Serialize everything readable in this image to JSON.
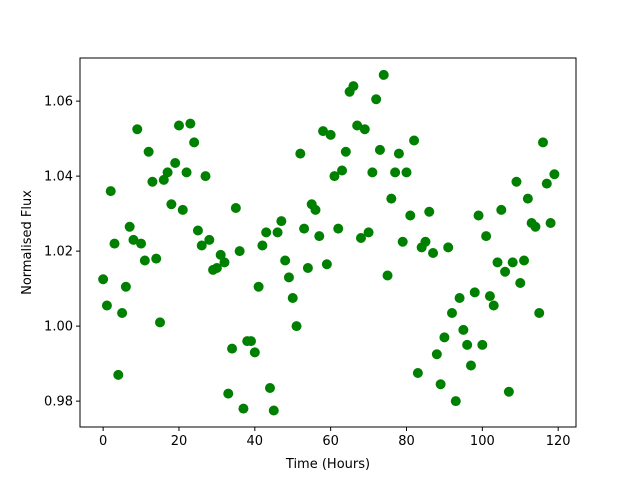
{
  "chart_data": {
    "type": "scatter",
    "title": "",
    "xlabel": "Time (Hours)",
    "ylabel": "Normalised Flux",
    "xlim": [
      -6.1,
      124.7
    ],
    "ylim": [
      0.9731,
      1.0715
    ],
    "xticks": [
      0,
      20,
      40,
      60,
      80,
      100,
      120
    ],
    "xtick_labels": [
      "0",
      "20",
      "40",
      "60",
      "80",
      "100",
      "120"
    ],
    "yticks": [
      0.98,
      1.0,
      1.02,
      1.04,
      1.06
    ],
    "ytick_labels": [
      "0.98",
      "1.00",
      "1.02",
      "1.04",
      "1.06"
    ],
    "grid": false,
    "marker_color": "#008000",
    "x": [
      0,
      1,
      2,
      3,
      4,
      5,
      6,
      7,
      8,
      9,
      10,
      11,
      12,
      13,
      14,
      15,
      16,
      17,
      18,
      19,
      20,
      21,
      22,
      23,
      24,
      25,
      26,
      27,
      28,
      29,
      30,
      31,
      32,
      33,
      34,
      35,
      36,
      37,
      38,
      39,
      40,
      41,
      42,
      43,
      44,
      45,
      46,
      47,
      48,
      49,
      50,
      51,
      52,
      53,
      54,
      55,
      56,
      57,
      58,
      59,
      60,
      61,
      62,
      63,
      64,
      65,
      66,
      67,
      68,
      69,
      70,
      71,
      72,
      73,
      74,
      75,
      76,
      77,
      78,
      79,
      80,
      81,
      82,
      83,
      84,
      85,
      86,
      87,
      88,
      89,
      90,
      91,
      92,
      93,
      94,
      95,
      96,
      97,
      98,
      99,
      100,
      101,
      102,
      103,
      104,
      105,
      106,
      107,
      108,
      109,
      110,
      111,
      112,
      113,
      114,
      115,
      116,
      117,
      118,
      119
    ],
    "y": [
      1.0125,
      1.0055,
      1.036,
      1.022,
      0.987,
      1.0035,
      1.0105,
      1.0265,
      1.023,
      1.0525,
      1.022,
      1.0175,
      1.0465,
      1.0385,
      1.018,
      1.001,
      1.039,
      1.041,
      1.0325,
      1.0435,
      1.0535,
      1.031,
      1.041,
      1.054,
      1.049,
      1.0255,
      1.0215,
      1.04,
      1.023,
      1.015,
      1.0155,
      1.019,
      1.017,
      0.982,
      0.994,
      1.0315,
      1.02,
      0.978,
      0.996,
      0.996,
      0.993,
      1.0105,
      1.0215,
      1.025,
      0.9835,
      0.9775,
      1.025,
      1.028,
      1.0175,
      1.013,
      1.0075,
      1.0,
      1.046,
      1.026,
      1.0155,
      1.0325,
      1.031,
      1.024,
      1.052,
      1.0165,
      1.051,
      1.04,
      1.026,
      1.0415,
      1.0465,
      1.0625,
      1.064,
      1.0535,
      1.0235,
      1.0525,
      1.025,
      1.041,
      1.0605,
      1.047,
      1.067,
      1.0135,
      1.034,
      1.041,
      1.046,
      1.0225,
      1.041,
      1.0295,
      1.0495,
      0.9875,
      1.021,
      1.0225,
      1.0305,
      1.0195,
      0.9925,
      0.9845,
      0.997,
      1.021,
      1.0035,
      0.98,
      1.0075,
      0.999,
      0.995,
      0.9895,
      1.009,
      1.0295,
      0.995,
      1.024,
      1.008,
      1.0055,
      1.017,
      1.031,
      1.0145,
      0.9825,
      1.017,
      1.0385,
      1.0115,
      1.0175,
      1.034,
      1.0275,
      1.0265,
      1.0035,
      1.049,
      1.038,
      1.0275,
      1.0405
    ]
  }
}
